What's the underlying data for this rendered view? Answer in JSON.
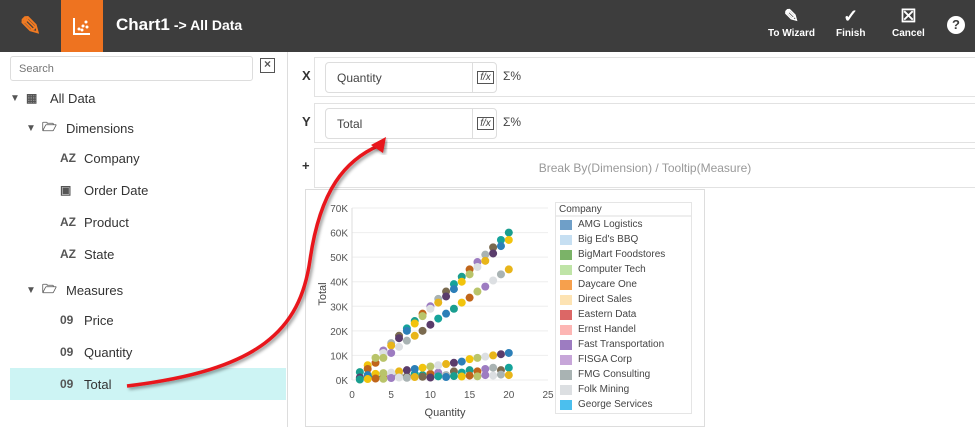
{
  "header": {
    "title": "Chart1",
    "subtitle": "-> All Data",
    "buttons": [
      {
        "label": "To Wizard",
        "icon": "pencil-icon"
      },
      {
        "label": "Finish",
        "icon": "check-circle-icon"
      },
      {
        "label": "Cancel",
        "icon": "close-box-icon"
      }
    ],
    "help": "?"
  },
  "sidebar": {
    "search_placeholder": "Search",
    "tree": {
      "root": "All Data",
      "dimensions_label": "Dimensions",
      "dimensions": [
        {
          "label": "Company",
          "icon": "AZ"
        },
        {
          "label": "Order Date",
          "icon": "calendar"
        },
        {
          "label": "Product",
          "icon": "AZ"
        },
        {
          "label": "State",
          "icon": "AZ"
        }
      ],
      "measures_label": "Measures",
      "measures": [
        {
          "label": "Price",
          "icon": "09"
        },
        {
          "label": "Quantity",
          "icon": "09"
        },
        {
          "label": "Total",
          "icon": "09"
        }
      ]
    },
    "selected": "Total"
  },
  "main": {
    "x_label": "X",
    "x_field": "Quantity",
    "y_label": "Y",
    "y_field": "Total",
    "sigma": "Σ%",
    "plus": "+",
    "break_by": "Break By(Dimension) / Tooltip(Measure)"
  },
  "colors": {
    "accent": "#ee7320",
    "header": "#3d3d3d",
    "selection": "#cdf4f4",
    "arrow": "#e8141a"
  },
  "chart_data": {
    "type": "scatter",
    "xlabel": "Quantity",
    "ylabel": "Total",
    "xlim": [
      0,
      25
    ],
    "ylim": [
      0,
      70000
    ],
    "xticks": [
      "0",
      "5",
      "10",
      "15",
      "20",
      "25"
    ],
    "yticks": [
      "0K",
      "10K",
      "20K",
      "30K",
      "40K",
      "50K",
      "60K",
      "70K"
    ],
    "grid": true,
    "legend_title": "Company",
    "legend_position": "right",
    "legend": [
      {
        "name": "AMG Logistics",
        "color": "#6f9fc8"
      },
      {
        "name": "Big Ed's BBQ",
        "color": "#c6dff2"
      },
      {
        "name": "BigMart Foodstores",
        "color": "#7bb368"
      },
      {
        "name": "Computer Tech",
        "color": "#bfe4a7"
      },
      {
        "name": "Daycare One",
        "color": "#f6a04d"
      },
      {
        "name": "Direct Sales",
        "color": "#fde3b3"
      },
      {
        "name": "Eastern Data",
        "color": "#dc6766"
      },
      {
        "name": "Ernst Handel",
        "color": "#fdb6b4"
      },
      {
        "name": "Fast Transportation",
        "color": "#9d7cc1"
      },
      {
        "name": "FISGA Corp",
        "color": "#c7a6d9"
      },
      {
        "name": "FMG Consulting",
        "color": "#a9b3b3"
      },
      {
        "name": "Folk Mining",
        "color": "#dcdfe2"
      },
      {
        "name": "George Services",
        "color": "#4bbfee"
      }
    ],
    "points": [
      [
        1,
        3200
      ],
      [
        2,
        6000
      ],
      [
        3,
        7000
      ],
      [
        3,
        9000
      ],
      [
        4,
        12000
      ],
      [
        4,
        11000
      ],
      [
        5,
        15000
      ],
      [
        5,
        14000
      ],
      [
        6,
        18000
      ],
      [
        6,
        17000
      ],
      [
        7,
        21000
      ],
      [
        7,
        20000
      ],
      [
        8,
        24000
      ],
      [
        8,
        23000
      ],
      [
        9,
        27000
      ],
      [
        9,
        26000
      ],
      [
        10,
        30000
      ],
      [
        10,
        29000
      ],
      [
        11,
        33000
      ],
      [
        11,
        31500
      ],
      [
        12,
        36000
      ],
      [
        12,
        34000
      ],
      [
        13,
        39000
      ],
      [
        13,
        37000
      ],
      [
        14,
        42000
      ],
      [
        14,
        40000
      ],
      [
        15,
        45000
      ],
      [
        15,
        43000
      ],
      [
        16,
        48000
      ],
      [
        16,
        46000
      ],
      [
        17,
        51000
      ],
      [
        17,
        48500
      ],
      [
        18,
        54000
      ],
      [
        18,
        51500
      ],
      [
        19,
        57000
      ],
      [
        19,
        54500
      ],
      [
        20,
        60000
      ],
      [
        20,
        57000
      ],
      [
        2,
        4500
      ],
      [
        4,
        9000
      ],
      [
        5,
        11000
      ],
      [
        6,
        13500
      ],
      [
        7,
        16000
      ],
      [
        8,
        18000
      ],
      [
        9,
        20000
      ],
      [
        10,
        22500
      ],
      [
        11,
        25000
      ],
      [
        12,
        27000
      ],
      [
        13,
        29000
      ],
      [
        14,
        31500
      ],
      [
        15,
        33500
      ],
      [
        16,
        36000
      ],
      [
        17,
        38000
      ],
      [
        18,
        40500
      ],
      [
        19,
        43000
      ],
      [
        20,
        45000
      ],
      [
        1,
        500
      ],
      [
        1,
        1000
      ],
      [
        2,
        1000
      ],
      [
        2,
        2000
      ],
      [
        3,
        1500
      ],
      [
        3,
        2500
      ],
      [
        4,
        1000
      ],
      [
        4,
        2800
      ],
      [
        5,
        1500
      ],
      [
        5,
        3000
      ],
      [
        6,
        2000
      ],
      [
        6,
        3500
      ],
      [
        7,
        1500
      ],
      [
        7,
        4000
      ],
      [
        8,
        2500
      ],
      [
        8,
        4500
      ],
      [
        9,
        2000
      ],
      [
        9,
        5000
      ],
      [
        10,
        2500
      ],
      [
        10,
        5500
      ],
      [
        11,
        3000
      ],
      [
        11,
        6000
      ],
      [
        12,
        2000
      ],
      [
        12,
        6500
      ],
      [
        13,
        3500
      ],
      [
        13,
        7000
      ],
      [
        14,
        3000
      ],
      [
        14,
        7500
      ],
      [
        15,
        4000
      ],
      [
        15,
        8500
      ],
      [
        16,
        3500
      ],
      [
        16,
        9000
      ],
      [
        17,
        4500
      ],
      [
        17,
        9500
      ],
      [
        18,
        5000
      ],
      [
        18,
        10000
      ],
      [
        19,
        4000
      ],
      [
        19,
        10500
      ],
      [
        20,
        5000
      ],
      [
        20,
        11000
      ],
      [
        1,
        200
      ],
      [
        2,
        400
      ],
      [
        3,
        600
      ],
      [
        4,
        500
      ],
      [
        5,
        800
      ],
      [
        6,
        1000
      ],
      [
        7,
        900
      ],
      [
        8,
        1200
      ],
      [
        9,
        1300
      ],
      [
        10,
        1000
      ],
      [
        11,
        1500
      ],
      [
        12,
        1200
      ],
      [
        13,
        1600
      ],
      [
        14,
        1400
      ],
      [
        15,
        1800
      ],
      [
        16,
        1500
      ],
      [
        17,
        2000
      ],
      [
        18,
        1800
      ],
      [
        19,
        2200
      ],
      [
        20,
        2000
      ]
    ]
  }
}
